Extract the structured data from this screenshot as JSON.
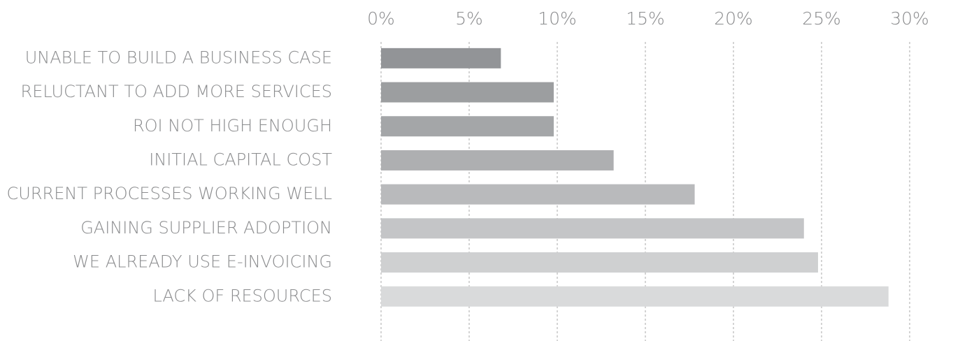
{
  "chart_data": {
    "type": "hbar",
    "categories": [
      "UNABLE TO BUILD A BUSINESS CASE",
      "RELUCTANT TO ADD MORE SERVICES",
      "ROI NOT HIGH ENOUGH",
      "INITIAL CAPITAL COST",
      "CURRENT PROCESSES WORKING WELL",
      "GAINING SUPPLIER ADOPTION",
      "WE ALREADY USE E-INVOICING",
      "LACK OF RESOURCES"
    ],
    "values": [
      6.8,
      9.8,
      9.8,
      13.2,
      17.8,
      24.0,
      24.8,
      28.8
    ],
    "colors": [
      "#929497",
      "#9c9ea0",
      "#a4a6a8",
      "#aeafb1",
      "#b9babc",
      "#c4c5c7",
      "#cfd0d1",
      "#d9dadb"
    ],
    "xlim": [
      0,
      30
    ],
    "xticks": [
      {
        "value": 0,
        "label": "0%"
      },
      {
        "value": 5,
        "label": "5%"
      },
      {
        "value": 10,
        "label": "10%"
      },
      {
        "value": 15,
        "label": "15%"
      },
      {
        "value": 20,
        "label": "20%"
      },
      {
        "value": 25,
        "label": "25%"
      },
      {
        "value": 30,
        "label": "30%"
      }
    ],
    "grid": true
  }
}
